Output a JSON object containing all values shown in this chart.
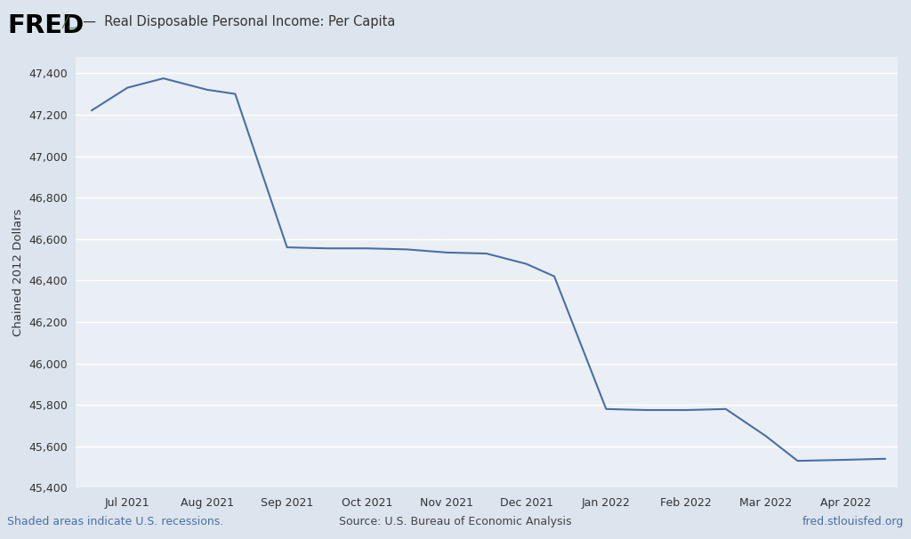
{
  "x_labels": [
    "Jul 2021",
    "Aug 2021",
    "Sep 2021",
    "Oct 2021",
    "Nov 2021",
    "Dec 2021",
    "Jan 2022",
    "Feb 2022",
    "Mar 2022",
    "Apr 2022"
  ],
  "line_color": "#4a6fa5",
  "background_outer": "#dce4ee",
  "background_plot": "#eaeff5",
  "grid_color": "#ffffff",
  "ylabel": "Chained 2012 Dollars",
  "ylim_min": 45400,
  "ylim_max": 47480,
  "yticks": [
    45400,
    45600,
    45800,
    46000,
    46200,
    46400,
    46600,
    46800,
    47000,
    47200,
    47400
  ],
  "header_text": "  —  Real Disposable Personal Income: Per Capita",
  "footer_left": "Shaded areas indicate U.S. recessions.",
  "footer_center": "Source: U.S. Bureau of Economic Analysis",
  "footer_right": "fred.stlouisfed.org",
  "footer_color": "#4a6fa5",
  "footer_source_color": "#444444",
  "x_data": [
    -0.45,
    0.0,
    0.45,
    1.0,
    1.35,
    2.0,
    2.5,
    3.0,
    3.5,
    4.0,
    4.5,
    5.0,
    5.35,
    6.0,
    6.5,
    7.0,
    7.5,
    8.0,
    8.4,
    9.0,
    9.5
  ],
  "y_data": [
    47220,
    47330,
    47375,
    47320,
    47300,
    46560,
    46555,
    46555,
    46550,
    46535,
    46530,
    46480,
    46420,
    45780,
    45775,
    45775,
    45780,
    45650,
    45530,
    45535,
    45540
  ]
}
